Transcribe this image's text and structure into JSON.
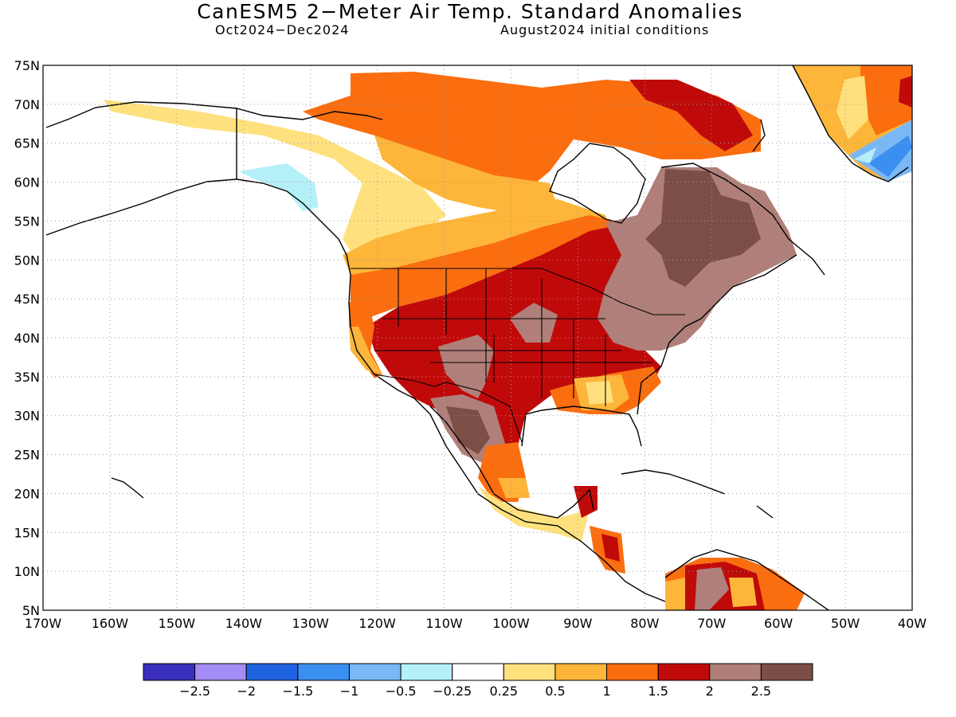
{
  "header": {
    "title": "CanESM5 2−Meter Air Temp. Standard Anomalies",
    "period": "Oct2024−Dec2024",
    "init": "August2024 initial conditions"
  },
  "map": {
    "lat_labels": [
      "75N",
      "70N",
      "65N",
      "60N",
      "55N",
      "50N",
      "45N",
      "40N",
      "35N",
      "30N",
      "25N",
      "20N",
      "15N",
      "10N",
      "5N"
    ],
    "lon_labels": [
      "170W",
      "160W",
      "150W",
      "140W",
      "130W",
      "120W",
      "110W",
      "100W",
      "90W",
      "80W",
      "70W",
      "60W",
      "50W",
      "40W"
    ]
  },
  "legend": {
    "labels": [
      "−2.5",
      "−2",
      "−1.5",
      "−1",
      "−0.5",
      "−0.25",
      "0.25",
      "0.5",
      "1",
      "1.5",
      "2",
      "2.5"
    ],
    "colors": [
      "#3a2ebc",
      "#a38cf5",
      "#1f63e0",
      "#3b8ff0",
      "#7ab8f5",
      "#b4f0f8",
      "#ffffff",
      "#fee17e",
      "#fdb53a",
      "#fa6e10",
      "#c00a0a",
      "#b07f79",
      "#7b4f45"
    ]
  }
}
